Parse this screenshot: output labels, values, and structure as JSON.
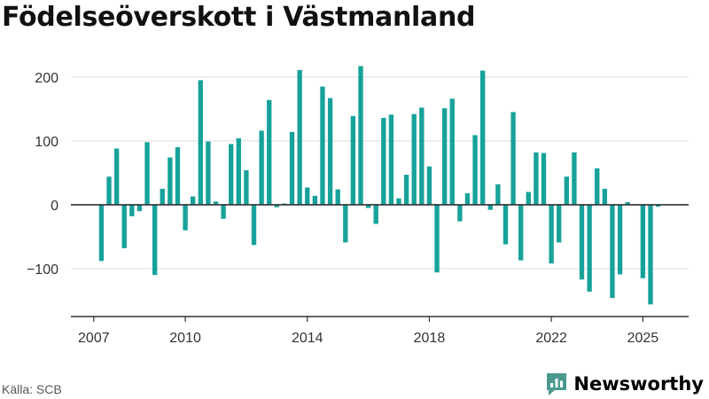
{
  "header": {
    "title": "Födelseöverskott i Västmanland"
  },
  "footer": {
    "source": "Källa: SCB",
    "brand": "Newsworthy"
  },
  "colors": {
    "bar": "#16a29a",
    "grid": "#dddddd",
    "zero_line": "#333333",
    "axis": "#333333",
    "brand": "#4c9a8f"
  },
  "chart_data": {
    "type": "bar",
    "title": "Födelseöverskott i Västmanland",
    "xlabel": "",
    "ylabel": "",
    "ylim": [
      -175,
      240
    ],
    "yticks": [
      -100,
      0,
      100,
      200
    ],
    "ytick_labels": [
      "−100",
      "0",
      "100",
      "200"
    ],
    "xticks": [
      2007,
      2010,
      2014,
      2018,
      2022,
      2025
    ],
    "xlim": [
      2006.25,
      2026.5
    ],
    "grid": true,
    "legend": "none",
    "x": [
      2007.25,
      2007.5,
      2007.75,
      2008.0,
      2008.25,
      2008.5,
      2008.75,
      2009.0,
      2009.25,
      2009.5,
      2009.75,
      2010.0,
      2010.25,
      2010.5,
      2010.75,
      2011.0,
      2011.25,
      2011.5,
      2011.75,
      2012.0,
      2012.25,
      2012.5,
      2012.75,
      2013.0,
      2013.25,
      2013.5,
      2013.75,
      2014.0,
      2014.25,
      2014.5,
      2014.75,
      2015.0,
      2015.25,
      2015.5,
      2015.75,
      2016.0,
      2016.25,
      2016.5,
      2016.75,
      2017.0,
      2017.25,
      2017.5,
      2017.75,
      2018.0,
      2018.25,
      2018.5,
      2018.75,
      2019.0,
      2019.25,
      2019.5,
      2019.75,
      2020.0,
      2020.25,
      2020.5,
      2020.75,
      2021.0,
      2021.25,
      2021.5,
      2021.75,
      2022.0,
      2022.25,
      2022.5,
      2022.75,
      2023.0,
      2023.25,
      2023.5,
      2023.75,
      2024.0,
      2024.25,
      2024.5,
      2024.75,
      2025.0,
      2025.25,
      2025.5
    ],
    "values": [
      -88,
      44,
      88,
      -68,
      -18,
      -10,
      98,
      -110,
      25,
      74,
      90,
      -40,
      13,
      195,
      99,
      5,
      -22,
      95,
      104,
      54,
      -63,
      116,
      164,
      -4,
      2,
      114,
      211,
      27,
      14,
      185,
      167,
      24,
      -59,
      139,
      217,
      -5,
      -30,
      136,
      141,
      10,
      47,
      142,
      152,
      60,
      -106,
      151,
      166,
      -26,
      18,
      109,
      210,
      -8,
      32,
      -62,
      145,
      -87,
      20,
      82,
      81,
      -92,
      -59,
      44,
      82,
      -117,
      -136,
      57,
      25,
      -146,
      -109,
      4,
      0,
      -115,
      -156,
      -3
    ]
  }
}
